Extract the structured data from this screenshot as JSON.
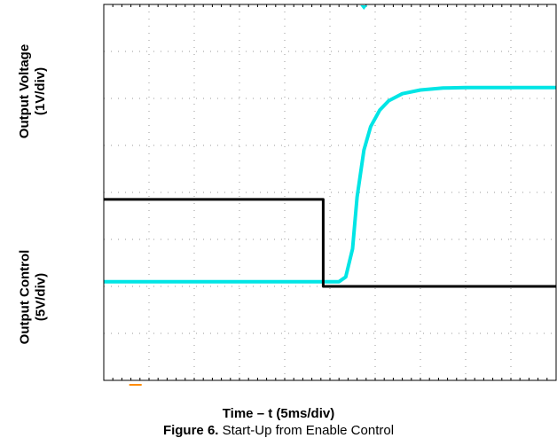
{
  "chart_data": {
    "type": "line",
    "title": "",
    "xlabel": "Time – t (5ms/div)",
    "caption_label": "Figure 6.",
    "caption_text": "Start-Up from Enable Control",
    "ylabel_top": [
      "Output Voltage",
      "(1V/div)"
    ],
    "ylabel_bottom": [
      "Output Control",
      "(5V/div)"
    ],
    "x_divisions": 10,
    "y_divisions": 8,
    "grid": true,
    "xlim": [
      0,
      10
    ],
    "ylim": [
      0,
      8
    ],
    "series": [
      {
        "color": "#00e5e5",
        "x": [
          0,
          1,
          2,
          3,
          4,
          4.9,
          5.2,
          5.35,
          5.5,
          5.6,
          5.75,
          5.9,
          6.1,
          6.3,
          6.6,
          7.0,
          7.5,
          8,
          9,
          10
        ],
        "y": [
          2.1,
          2.1,
          2.1,
          2.1,
          2.1,
          2.1,
          2.1,
          2.2,
          2.8,
          3.9,
          4.9,
          5.4,
          5.75,
          5.95,
          6.1,
          6.18,
          6.22,
          6.23,
          6.23,
          6.23
        ]
      },
      {
        "color": "#000000",
        "x": [
          0,
          4.85,
          4.85,
          10
        ],
        "y": [
          3.85,
          3.85,
          2.0,
          2.0
        ]
      }
    ],
    "markers": [
      {
        "name": "trigger-marker",
        "color": "#00e5e5",
        "x": 5.75,
        "y": 8.0
      },
      {
        "name": "ground-marker",
        "color": "#ff8c00",
        "x": 0.7,
        "y": 0
      }
    ]
  }
}
